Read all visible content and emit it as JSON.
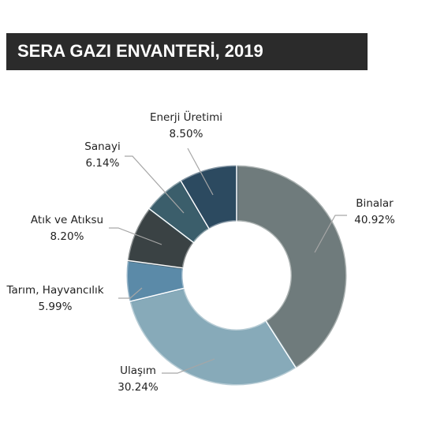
{
  "title": "SERA GAZI ENVANTERİ, 2019",
  "chart_data": {
    "type": "pie",
    "variant": "donut",
    "title": "SERA GAZI ENVANTERİ, 2019",
    "categories": [
      "Binalar",
      "Ulaşım",
      "Tarım, Hayvancılık",
      "Atık ve Atıksu",
      "Sanayi",
      "Enerji Üretimi"
    ],
    "values": [
      40.92,
      30.24,
      5.99,
      8.2,
      6.14,
      8.5
    ],
    "value_labels": [
      "40.92%",
      "30.24%",
      "5.99%",
      "8.20%",
      "6.14%",
      "8.50%"
    ],
    "colors": [
      "#6f7b7c",
      "#87aab9",
      "#5b8aa8",
      "#3a4244",
      "#3b5e6b",
      "#2c4a60"
    ],
    "legend": "none"
  }
}
